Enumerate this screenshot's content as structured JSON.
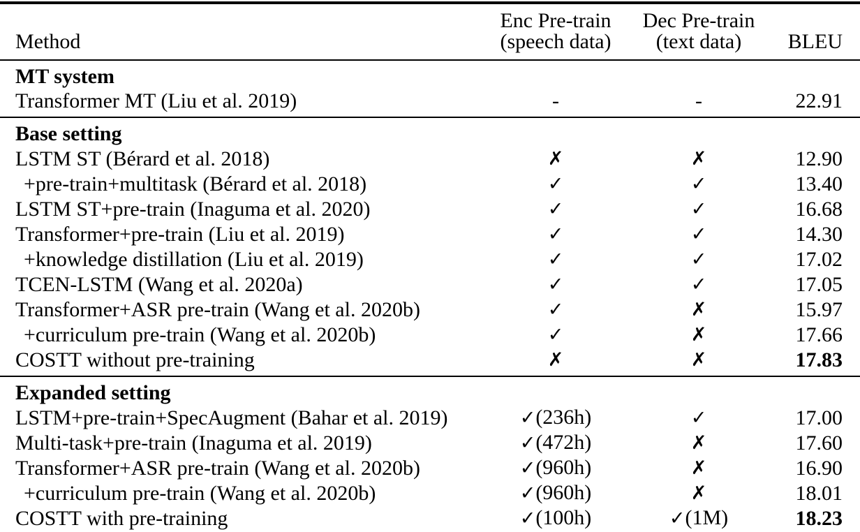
{
  "colors": {
    "text": "#000000",
    "background": "#ffffff",
    "rule": "#000000"
  },
  "table": {
    "header": {
      "method": "Method",
      "enc_line1": "Enc Pre-train",
      "enc_line2": "(speech data)",
      "dec_line1": "Dec Pre-train",
      "dec_line2": "(text data)",
      "bleu": "BLEU"
    },
    "sections": [
      {
        "title": "MT system",
        "rows": [
          {
            "method": "Transformer MT (Liu et al. 2019)",
            "enc_mark": "-",
            "dec_mark": "-",
            "bleu": "22.91"
          }
        ]
      },
      {
        "title": "Base setting",
        "rows": [
          {
            "method": "LSTM ST (Bérard et al. 2018)",
            "enc_mark": "✗",
            "dec_mark": "✗",
            "bleu": "12.90"
          },
          {
            "method": "+pre-train+multitask (Bérard et al. 2018)",
            "indent": true,
            "enc_mark": "✓",
            "dec_mark": "✓",
            "bleu": "13.40"
          },
          {
            "method": "LSTM ST+pre-train (Inaguma et al. 2020)",
            "enc_mark": "✓",
            "dec_mark": "✓",
            "bleu": "16.68"
          },
          {
            "method": "Transformer+pre-train (Liu et al. 2019)",
            "enc_mark": "✓",
            "dec_mark": "✓",
            "bleu": "14.30"
          },
          {
            "method": "+knowledge distillation (Liu et al. 2019)",
            "indent": true,
            "enc_mark": "✓",
            "dec_mark": "✓",
            "bleu": "17.02"
          },
          {
            "method": "TCEN-LSTM (Wang et al. 2020a)",
            "enc_mark": "✓",
            "dec_mark": "✓",
            "bleu": "17.05"
          },
          {
            "method": "Transformer+ASR pre-train (Wang et al. 2020b)",
            "enc_mark": "✓",
            "dec_mark": "✗",
            "bleu": "15.97"
          },
          {
            "method": "+curriculum pre-train (Wang et al. 2020b)",
            "indent": true,
            "enc_mark": "✓",
            "dec_mark": "✗",
            "bleu": "17.66"
          },
          {
            "method": "COSTT without pre-training",
            "enc_mark": "✗",
            "dec_mark": "✗",
            "bleu": "17.83",
            "bold_bleu": true
          }
        ]
      },
      {
        "title": "Expanded setting",
        "rows": [
          {
            "method": "LSTM+pre-train+SpecAugment (Bahar et al. 2019)",
            "enc_mark": "✓",
            "enc_note": "(236h)",
            "dec_mark": "✓",
            "bleu": "17.00"
          },
          {
            "method": "Multi-task+pre-train (Inaguma et al. 2019)",
            "enc_mark": "✓",
            "enc_note": "(472h)",
            "dec_mark": "✗",
            "bleu": "17.60"
          },
          {
            "method": "Transformer+ASR pre-train (Wang et al. 2020b)",
            "enc_mark": "✓",
            "enc_note": "(960h)",
            "dec_mark": "✗",
            "bleu": "16.90"
          },
          {
            "method": "+curriculum pre-train (Wang et al. 2020b)",
            "indent": true,
            "enc_mark": "✓",
            "enc_note": "(960h)",
            "dec_mark": "✗",
            "bleu": "18.01"
          },
          {
            "method": "COSTT with pre-training",
            "enc_mark": "✓",
            "enc_note": "(100h)",
            "dec_mark": "✓",
            "dec_note": "(1M)",
            "bleu": "18.23",
            "bold_bleu": true
          }
        ]
      }
    ]
  }
}
